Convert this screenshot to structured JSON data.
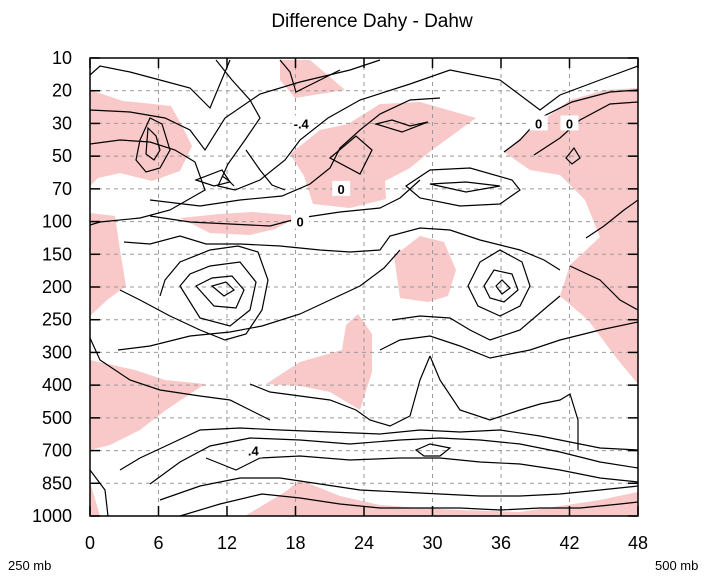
{
  "chart_data": {
    "type": "contour",
    "title": "Difference Dahy - Dahw",
    "x_ticks": [
      "0",
      "6",
      "12",
      "18",
      "24",
      "30",
      "36",
      "42",
      "48"
    ],
    "y_ticks": [
      "10",
      "20",
      "30",
      "50",
      "70",
      "100",
      "150",
      "200",
      "250",
      "300",
      "400",
      "500",
      "700",
      "850",
      "1000"
    ],
    "xlim": [
      0,
      48
    ],
    "corner_left_label": "250 mb",
    "corner_right_label": "500 mb",
    "contour_labels": [
      {
        "text": "-.4",
        "x": 18.5,
        "y": "30"
      },
      {
        "text": "0",
        "x": 22,
        "y": "70"
      },
      {
        "text": "0",
        "x": 18.4,
        "y": "100"
      },
      {
        "text": "0",
        "x": 39.3,
        "y": "30"
      },
      {
        "text": "0",
        "x": 42,
        "y": "30"
      },
      {
        "text": ".4",
        "x": 14.3,
        "y": "700"
      }
    ],
    "shaded_regions_color": "#f9c8c8",
    "grid": "dashed",
    "contour_color": "#000000"
  }
}
